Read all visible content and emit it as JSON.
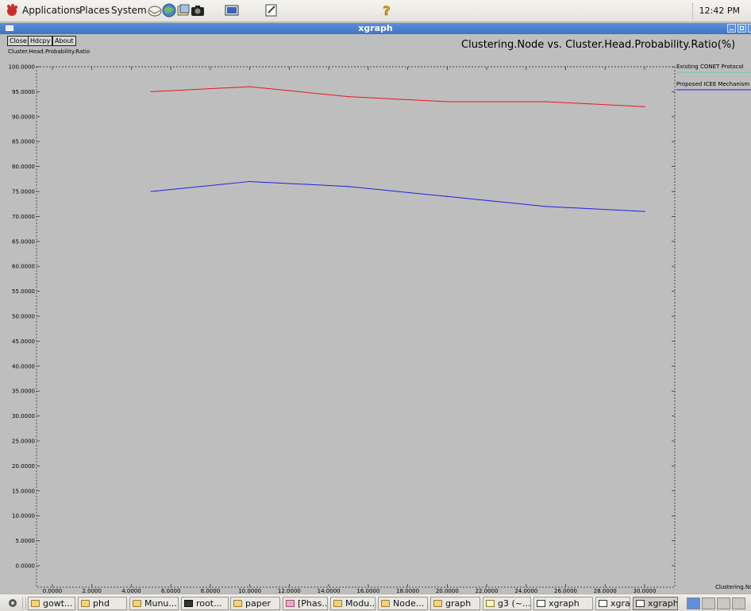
{
  "top_panel": {
    "menus": [
      "Applications",
      "Places",
      "System"
    ],
    "clock": "12:42 PM"
  },
  "window": {
    "title": "xgraph",
    "buttons": {
      "close": "Close",
      "hdcpy": "Hdcpy",
      "about": "About"
    }
  },
  "chart_data": {
    "type": "line",
    "title": "Clustering.Node vs. Cluster.Head.Probability.Ratio(%)",
    "ylabel": "Cluster.Head.Probability.Ratio",
    "xlabel": "Clustering.No",
    "xlim": [
      0,
      30
    ],
    "ylim": [
      0,
      100
    ],
    "grid": false,
    "legend_position": "right",
    "x_ticks": [
      "0.0000",
      "2.0000",
      "4.0000",
      "6.0000",
      "8.0000",
      "10.0000",
      "12.0000",
      "14.0000",
      "16.0000",
      "18.0000",
      "20.0000",
      "22.0000",
      "24.0000",
      "26.0000",
      "28.0000",
      "30.0000"
    ],
    "y_ticks": [
      "0.0000",
      "5.0000",
      "10.0000",
      "15.0000",
      "20.0000",
      "25.0000",
      "30.0000",
      "35.0000",
      "40.0000",
      "45.0000",
      "50.0000",
      "55.0000",
      "60.0000",
      "65.0000",
      "70.0000",
      "75.0000",
      "80.0000",
      "85.0000",
      "90.0000",
      "95.0000",
      "100.0000"
    ],
    "series": [
      {
        "name": "Existing CONET Protocol",
        "color": "#e8171c",
        "legend_color": "#5fd6a0",
        "x": [
          5,
          10,
          15,
          20,
          25,
          30
        ],
        "y": [
          95,
          96,
          94,
          93,
          93,
          92
        ]
      },
      {
        "name": "Proposed ICEE Mechanism",
        "color": "#2020e0",
        "legend_color": "#2020e0",
        "x": [
          5,
          10,
          15,
          20,
          25,
          30
        ],
        "y": [
          75,
          77,
          76,
          74,
          72,
          71
        ]
      }
    ]
  },
  "taskbar": {
    "items": [
      {
        "label": "gowt...",
        "icon": "folder-icon"
      },
      {
        "label": "phd",
        "icon": "folder-icon"
      },
      {
        "label": "Munu...",
        "icon": "folder-icon"
      },
      {
        "label": "root...",
        "icon": "terminal-icon"
      },
      {
        "label": "paper",
        "icon": "folder-icon"
      },
      {
        "label": "[Phas...",
        "icon": "image-icon"
      },
      {
        "label": "Modu...",
        "icon": "folder-icon"
      },
      {
        "label": "Node...",
        "icon": "folder-icon"
      },
      {
        "label": "graph",
        "icon": "folder-icon"
      },
      {
        "label": "g3 (~...",
        "icon": "text-editor-icon"
      },
      {
        "label": "xgraph",
        "icon": "window-icon"
      },
      {
        "label": "xgraph",
        "icon": "window-icon"
      },
      {
        "label": "xgraph",
        "icon": "window-icon"
      }
    ]
  }
}
